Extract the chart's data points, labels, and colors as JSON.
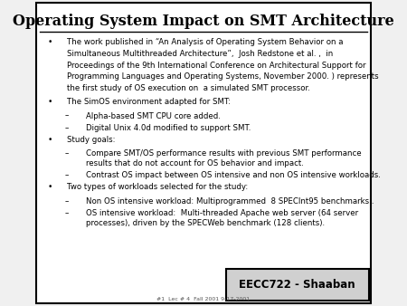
{
  "title": "Operating System Impact on SMT Architecture",
  "bg_color": "#f0f0f0",
  "slide_bg": "#ffffff",
  "border_color": "#000000",
  "title_color": "#000000",
  "text_color": "#000000",
  "footer_box_color": "#d0d0d0",
  "footer_text": "EECC722 - Shaaban",
  "footer_sub": "#1  Lec # 4  Fall 2001 9-17-2001",
  "bullet_points": [
    {
      "level": 0,
      "text": "The work published in “An Analysis of Operating System Behavior on a\nSimultaneous Multithreaded Architecture”,  Josh Redstone et al. ,  in\nProceedings of the 9th International Conference on Architectural Support for\nProgramming Languages and Operating Systems, November 2000. ) represents\nthe first study of OS execution on  a simulated SMT processor."
    },
    {
      "level": 0,
      "text": "The SimOS environment adapted for SMT:"
    },
    {
      "level": 1,
      "text": "Alpha-based SMT CPU core added."
    },
    {
      "level": 1,
      "text": "Digital Unix 4.0d modified to support SMT."
    },
    {
      "level": 0,
      "text": "Study goals:"
    },
    {
      "level": 1,
      "text": "Compare SMT/OS performance results with previous SMT performance\nresults that do not account for OS behavior and impact."
    },
    {
      "level": 1,
      "text": "Contrast OS impact between OS intensive and non OS intensive workloads."
    },
    {
      "level": 0,
      "text": "Two types of workloads selected for the study:"
    },
    {
      "level": 1,
      "text": "Non OS intensive workload: Multiprogrammed  8 SPECInt95 benchmarks ."
    },
    {
      "level": 1,
      "text": "OS intensive workload:  Multi-threaded Apache web server (64 server\nprocesses), driven by the SPECWeb benchmark (128 clients)."
    }
  ]
}
